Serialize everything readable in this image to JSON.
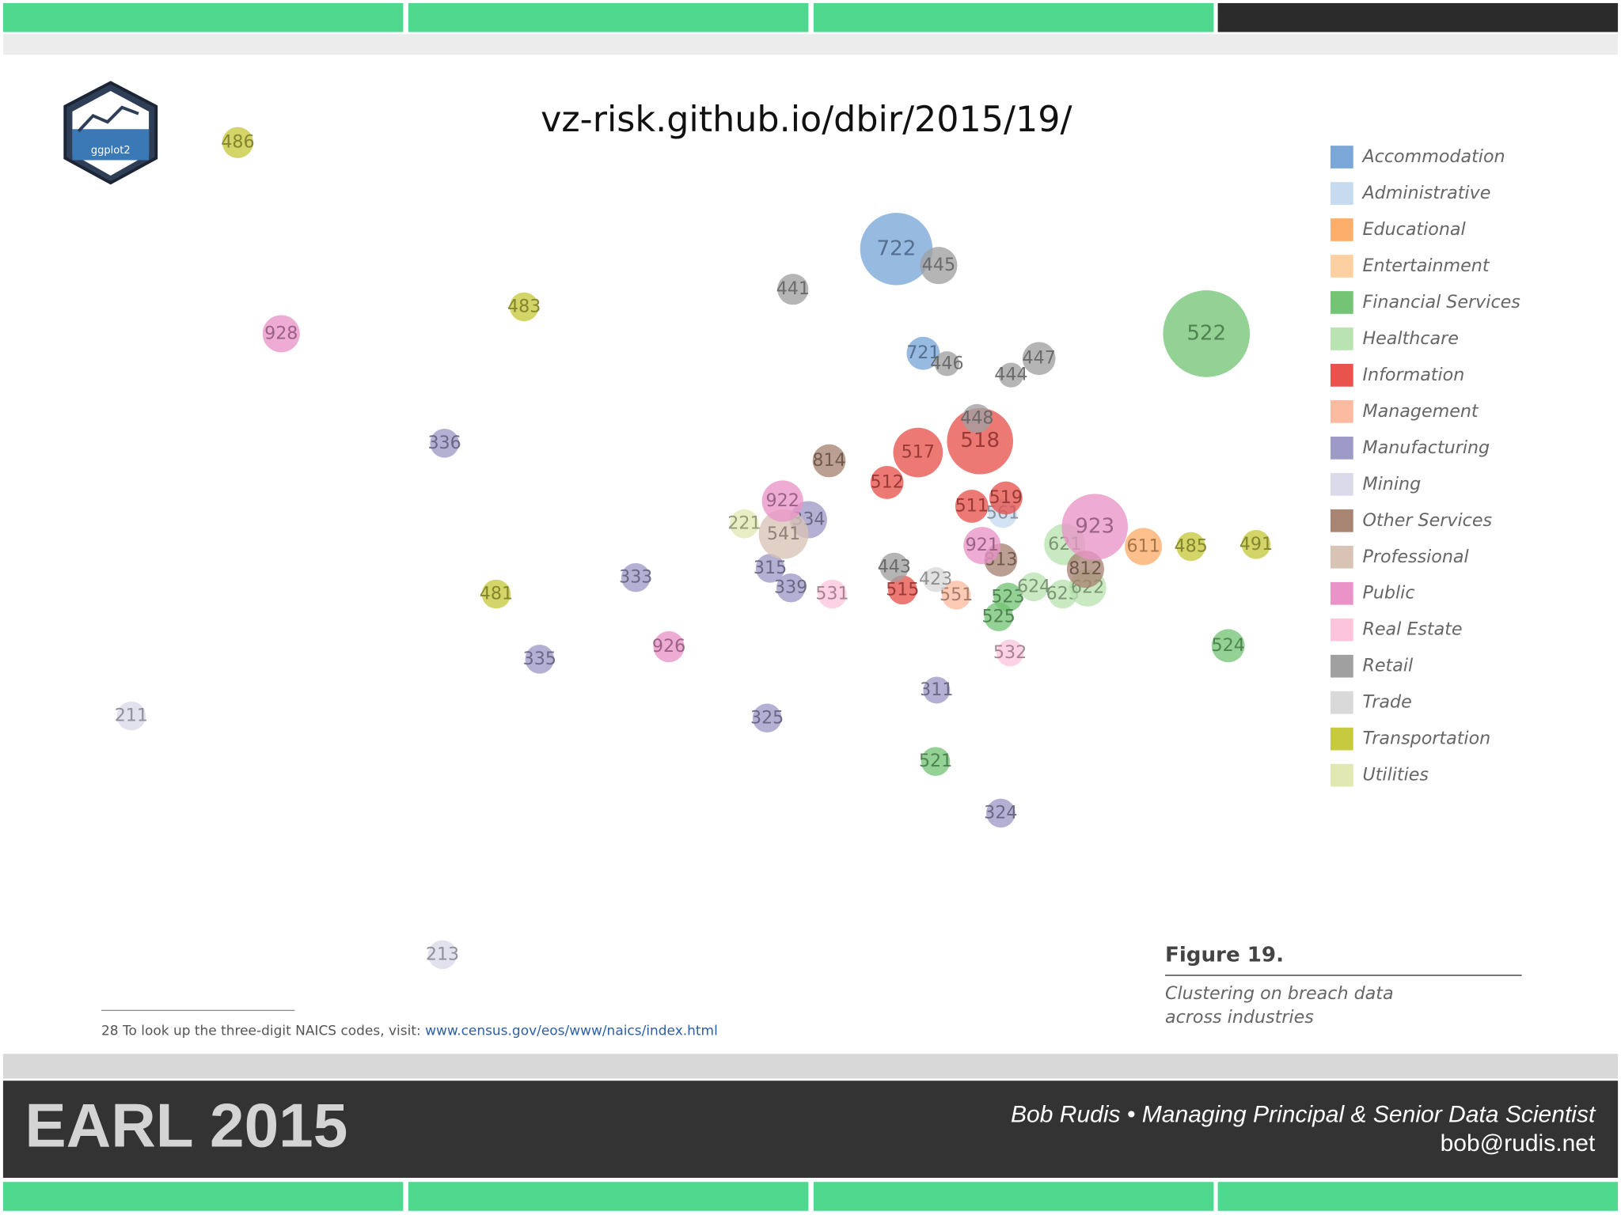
{
  "slide": {
    "url": "vz-risk.github.io/dbir/2015/19/",
    "logo": "ggplot2",
    "footnote": "28 To look up the three-digit NAICS codes, visit:",
    "footnote_link": "www.census.gov/eos/www/naics/index.html",
    "figure_title": "Figure 19.",
    "caption_lines": [
      "Clustering on breach data",
      "across industries"
    ],
    "brand": "EARL 2015",
    "speaker": "Bob Rudis • Managing Principal & Senior Data Scientist",
    "email": "bob@rudis.net"
  },
  "chart_data": {
    "type": "bubble",
    "xlim": [
      100,
      1250
    ],
    "ylim": [
      960,
      100
    ],
    "series": [
      {
        "name": "Accommodation",
        "color": "#7aa6d8",
        "labels": [
          "722",
          "721"
        ],
        "x": [
          867,
          893
        ],
        "values": [
          241,
          342
        ],
        "size": [
          35,
          16
        ]
      },
      {
        "name": "Administrative",
        "color": "#c6dbef",
        "labels": [
          "561"
        ],
        "x": [
          970
        ],
        "values": [
          497
        ],
        "size": [
          14
        ]
      },
      {
        "name": "Educational",
        "color": "#fdae6b",
        "labels": [
          "611"
        ],
        "x": [
          1106
        ],
        "values": [
          529
        ],
        "size": [
          18
        ]
      },
      {
        "name": "Entertainment",
        "color": "#fdd0a2",
        "labels": [],
        "x": [],
        "values": [],
        "size": []
      },
      {
        "name": "Financial Services",
        "color": "#74c476",
        "labels": [
          "522",
          "523",
          "525",
          "524",
          "521"
        ],
        "x": [
          1167,
          975,
          966,
          1188,
          905
        ],
        "values": [
          323,
          578,
          597,
          625,
          737
        ],
        "size": [
          42,
          14,
          14,
          16,
          14
        ]
      },
      {
        "name": "Healthcare",
        "color": "#b9e3b0",
        "labels": [
          "621",
          "624",
          "623",
          "622"
        ],
        "x": [
          1030,
          1000,
          1028,
          1052
        ],
        "values": [
          527,
          568,
          575,
          569
        ],
        "size": [
          20,
          14,
          14,
          18
        ]
      },
      {
        "name": "Information",
        "color": "#e8534e",
        "labels": [
          "518",
          "517",
          "512",
          "511",
          "519",
          "515"
        ],
        "x": [
          948,
          888,
          858,
          940,
          973,
          873
        ],
        "values": [
          427,
          438,
          467,
          490,
          482,
          571
        ],
        "size": [
          32,
          24,
          16,
          16,
          16,
          14
        ]
      },
      {
        "name": "Management",
        "color": "#fcbba1",
        "labels": [
          "551"
        ],
        "x": [
          925
        ],
        "values": [
          576
        ],
        "size": [
          14
        ]
      },
      {
        "name": "Manufacturing",
        "color": "#9e9ac8",
        "labels": [
          "336",
          "334",
          "315",
          "333",
          "339",
          "335",
          "311",
          "325",
          "324"
        ],
        "x": [
          430,
          782,
          745,
          615,
          765,
          522,
          906,
          742,
          968
        ],
        "values": [
          429,
          503,
          550,
          559,
          569,
          638,
          668,
          695,
          787
        ],
        "size": [
          14,
          18,
          14,
          14,
          14,
          14,
          13,
          14,
          14
        ]
      },
      {
        "name": "Mining",
        "color": "#dadaeb",
        "labels": [
          "211",
          "213"
        ],
        "x": [
          127,
          428
        ],
        "values": [
          693,
          924
        ],
        "size": [
          14,
          14
        ]
      },
      {
        "name": "Other Services",
        "color": "#a88473",
        "labels": [
          "814",
          "813",
          "812"
        ],
        "x": [
          802,
          968,
          1050
        ],
        "values": [
          446,
          542,
          551
        ],
        "size": [
          16,
          16,
          18
        ]
      },
      {
        "name": "Professional",
        "color": "#d9c3b5",
        "labels": [
          "541"
        ],
        "x": [
          758
        ],
        "values": [
          517
        ],
        "size": [
          24
        ]
      },
      {
        "name": "Public",
        "color": "#e993c8",
        "labels": [
          "928",
          "922",
          "923",
          "921",
          "926"
        ],
        "x": [
          272,
          757,
          1059,
          950,
          647
        ],
        "values": [
          323,
          485,
          510,
          528,
          626
        ],
        "size": [
          18,
          20,
          32,
          18,
          15
        ]
      },
      {
        "name": "Real Estate",
        "color": "#fcc5dc",
        "labels": [
          "531",
          "532"
        ],
        "x": [
          805,
          977
        ],
        "values": [
          575,
          632
        ],
        "size": [
          14,
          13
        ]
      },
      {
        "name": "Retail",
        "color": "#a0a0a0",
        "labels": [
          "445",
          "441",
          "446",
          "447",
          "444",
          "448",
          "443"
        ],
        "x": [
          908,
          767,
          916,
          1005,
          978,
          945,
          865
        ],
        "values": [
          257,
          280,
          352,
          347,
          363,
          405,
          549
        ],
        "size": [
          18,
          15,
          12,
          16,
          12,
          14,
          14
        ]
      },
      {
        "name": "Trade",
        "color": "#d9d9d9",
        "labels": [
          "423"
        ],
        "x": [
          905
        ],
        "values": [
          561
        ],
        "size": [
          12
        ]
      },
      {
        "name": "Transportation",
        "color": "#c7c93f",
        "labels": [
          "486",
          "483",
          "485",
          "491",
          "481"
        ],
        "x": [
          230,
          507,
          1152,
          1215,
          480
        ],
        "values": [
          138,
          297,
          529,
          527,
          575
        ],
        "size": [
          15,
          14,
          14,
          14,
          14
        ]
      },
      {
        "name": "Utilities",
        "color": "#e2e8b4",
        "labels": [
          "221"
        ],
        "x": [
          720
        ],
        "values": [
          507
        ],
        "size": [
          14
        ]
      }
    ]
  }
}
